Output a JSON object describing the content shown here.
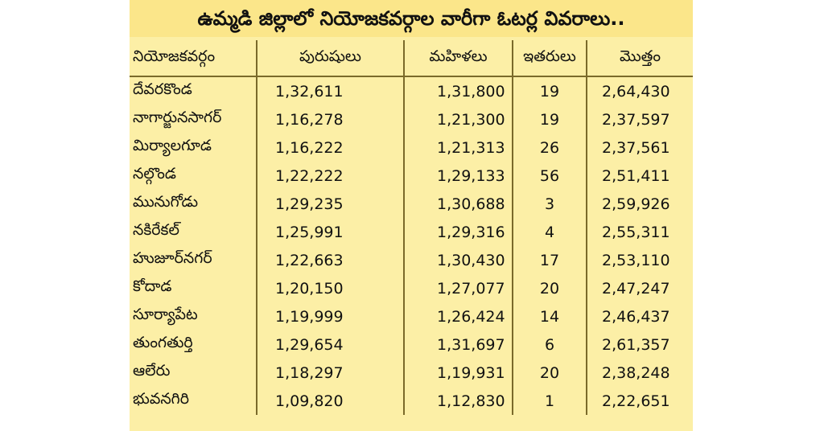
{
  "title": "ఉమ్మడి జిల్లాలో నియోజకవర్గాల వారీగా ఓటర్ల వివరాలు..",
  "columns": [
    "నియోజకవర్గం",
    "పురుషులు",
    "మహిళలు",
    "ఇతరులు",
    "మొత్తం"
  ],
  "rows": [
    [
      "దేవరకొండ",
      "1,32,611",
      "1,31,800",
      "19",
      "2,64,430"
    ],
    [
      "నాగార్జునసాగర్",
      "1,16,278",
      "1,21,300",
      "19",
      "2,37,597"
    ],
    [
      "మిర్యాలగూడ",
      "1,16,222",
      "1,21,313",
      "26",
      "2,37,561"
    ],
    [
      "నల్గొండ",
      "1,22,222",
      "1,29,133",
      "56",
      "2,51,411"
    ],
    [
      "మునుగోడు",
      "1,29,235",
      "1,30,688",
      "3",
      "2,59,926"
    ],
    [
      "నకిరేకల్",
      "1,25,991",
      "1,29,316",
      "4",
      "2,55,311"
    ],
    [
      "హుజూర్‌నగర్",
      "1,22,663",
      "1,30,430",
      "17",
      "2,53,110"
    ],
    [
      "కోదాడ",
      "1,20,150",
      "1,27,077",
      "20",
      "2,47,247"
    ],
    [
      "సూర్యాపేట",
      "1,19,999",
      "1,26,424",
      "14",
      "2,46,437"
    ],
    [
      "తుంగతుర్తి",
      "1,29,654",
      "1,31,697",
      "6",
      "2,61,357"
    ],
    [
      "ఆలేరు",
      "1,18,297",
      "1,19,931",
      "20",
      "2,38,248"
    ],
    [
      "భువనగిరి",
      "1,09,820",
      "1,12,830",
      "1",
      "2,22,651"
    ]
  ]
}
